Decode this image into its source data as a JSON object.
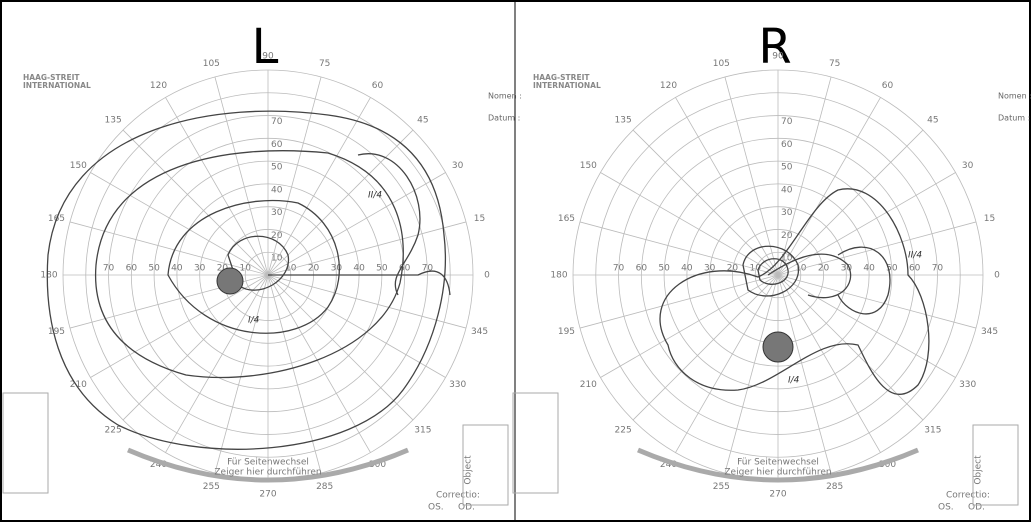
{
  "panels": [
    {
      "side": "L",
      "brand": [
        "HAAG-STREIT",
        "INTERNATIONAL"
      ],
      "angles": [
        0,
        15,
        30,
        45,
        60,
        75,
        90,
        105,
        120,
        135,
        150,
        165,
        180,
        195,
        210,
        225,
        240,
        255,
        270,
        285,
        300,
        315,
        330,
        345
      ],
      "rings": [
        10,
        20,
        30,
        40,
        50,
        60,
        70
      ],
      "fields": [
        "Nomen :",
        "Datum :"
      ],
      "arrow": [
        "Für Seitenwechsel",
        "Zeiger hier durchführen"
      ],
      "eyes": [
        "OS.",
        "OD."
      ],
      "correction": "Correctio:",
      "object": "Object",
      "annotations": [
        "II/4",
        "I/4"
      ]
    },
    {
      "side": "R",
      "brand": [
        "HAAG-STREIT",
        "INTERNATIONAL"
      ],
      "angles": [
        0,
        15,
        30,
        45,
        60,
        75,
        90,
        105,
        120,
        135,
        150,
        165,
        180,
        195,
        210,
        225,
        240,
        255,
        270,
        285,
        300,
        315,
        330,
        345
      ],
      "rings": [
        10,
        20,
        30,
        40,
        50,
        60,
        70
      ],
      "fields": [
        "Nomen :",
        "Datum :"
      ],
      "arrow": [
        "Für Seitenwechsel",
        "Zeiger hier durchführen"
      ],
      "eyes": [
        "OS.",
        "OD."
      ],
      "correction": "Correctio:",
      "object": "Object",
      "annotations": [
        "II/4",
        "I/4"
      ]
    }
  ]
}
